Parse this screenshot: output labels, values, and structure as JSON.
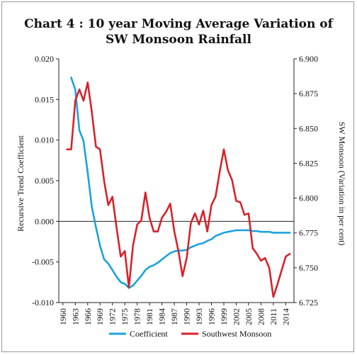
{
  "chart_data": {
    "type": "line",
    "title": [
      "Chart 4 : 10 year Moving Average Variation of",
      "SW Monsoon Rainfall"
    ],
    "y_left_label": "Recursive Trend Coefficient",
    "y_right_label": "SW Monsoon (Variation in per cent)",
    "y_left_range": [
      -0.01,
      0.02
    ],
    "y_left_ticks": [
      "0.020",
      "0.015",
      "0.010",
      "0.005",
      "0.000",
      "-0.005",
      "-0.010"
    ],
    "y_right_range": [
      6.725,
      6.9
    ],
    "y_right_ticks": [
      "6.900",
      "6.875",
      "6.850",
      "6.825",
      "6.800",
      "6.775",
      "6.750",
      "6.725"
    ],
    "x_range": [
      1959,
      2016
    ],
    "x_ticks": [
      "1960",
      "1963",
      "1966",
      "1969",
      "1972",
      "1975",
      "1978",
      "1981",
      "1984",
      "1987",
      "1990",
      "1993",
      "1996",
      "1999",
      "2002",
      "2005",
      "2008",
      "2011",
      "2014"
    ],
    "legend_position": "bottom",
    "series": [
      {
        "name": "Coefficient",
        "axis": "left",
        "color": "#1aa3dc",
        "x": [
          1962,
          1963,
          1964,
          1965,
          1966,
          1967,
          1968,
          1969,
          1970,
          1971,
          1972,
          1973,
          1974,
          1975,
          1976,
          1977,
          1978,
          1979,
          1980,
          1981,
          1982,
          1983,
          1984,
          1985,
          1986,
          1987,
          1988,
          1989,
          1990,
          1991,
          1992,
          1993,
          1994,
          1995,
          1996,
          1997,
          1998,
          1999,
          2000,
          2001,
          2002,
          2003,
          2004,
          2005,
          2006,
          2007,
          2008,
          2009,
          2010,
          2011,
          2012,
          2013,
          2014,
          2015
        ],
        "y": [
          0.0177,
          0.0162,
          0.0112,
          0.0099,
          0.006,
          0.0018,
          -0.0007,
          -0.003,
          -0.0047,
          -0.0052,
          -0.006,
          -0.0068,
          -0.0075,
          -0.0077,
          -0.0082,
          -0.0079,
          -0.0073,
          -0.0067,
          -0.006,
          -0.0056,
          -0.0054,
          -0.0051,
          -0.0047,
          -0.0043,
          -0.0039,
          -0.0037,
          -0.0036,
          -0.0036,
          -0.0035,
          -0.0032,
          -0.003,
          -0.0028,
          -0.0027,
          -0.0024,
          -0.0022,
          -0.0018,
          -0.0016,
          -0.0014,
          -0.0013,
          -0.0012,
          -0.0011,
          -0.0011,
          -0.0011,
          -0.0011,
          -0.0012,
          -0.0012,
          -0.0013,
          -0.0013,
          -0.0013,
          -0.0014,
          -0.0014,
          -0.0014,
          -0.0014,
          -0.0014
        ]
      },
      {
        "name": "Southwest Monsoon",
        "axis": "right",
        "color": "#d7222c",
        "x": [
          1961,
          1962,
          1963,
          1964,
          1965,
          1966,
          1967,
          1968,
          1969,
          1970,
          1971,
          1972,
          1973,
          1974,
          1975,
          1976,
          1977,
          1978,
          1979,
          1980,
          1981,
          1982,
          1983,
          1984,
          1985,
          1986,
          1987,
          1988,
          1989,
          1990,
          1991,
          1992,
          1993,
          1994,
          1995,
          1996,
          1997,
          1998,
          1999,
          2000,
          2001,
          2002,
          2003,
          2004,
          2005,
          2006,
          2007,
          2008,
          2009,
          2010,
          2011,
          2012,
          2013,
          2014,
          2015
        ],
        "y": [
          6.835,
          6.835,
          6.87,
          6.878,
          6.87,
          6.883,
          6.862,
          6.837,
          6.835,
          6.812,
          6.795,
          6.801,
          6.779,
          6.758,
          6.762,
          6.736,
          6.766,
          6.781,
          6.784,
          6.804,
          6.786,
          6.776,
          6.776,
          6.786,
          6.79,
          6.796,
          6.776,
          6.762,
          6.744,
          6.757,
          6.782,
          6.789,
          6.781,
          6.791,
          6.776,
          6.795,
          6.801,
          6.819,
          6.835,
          6.82,
          6.813,
          6.798,
          6.797,
          6.788,
          6.789,
          6.764,
          6.76,
          6.755,
          6.757,
          6.75,
          6.729,
          6.738,
          6.748,
          6.758,
          6.76
        ]
      }
    ]
  }
}
